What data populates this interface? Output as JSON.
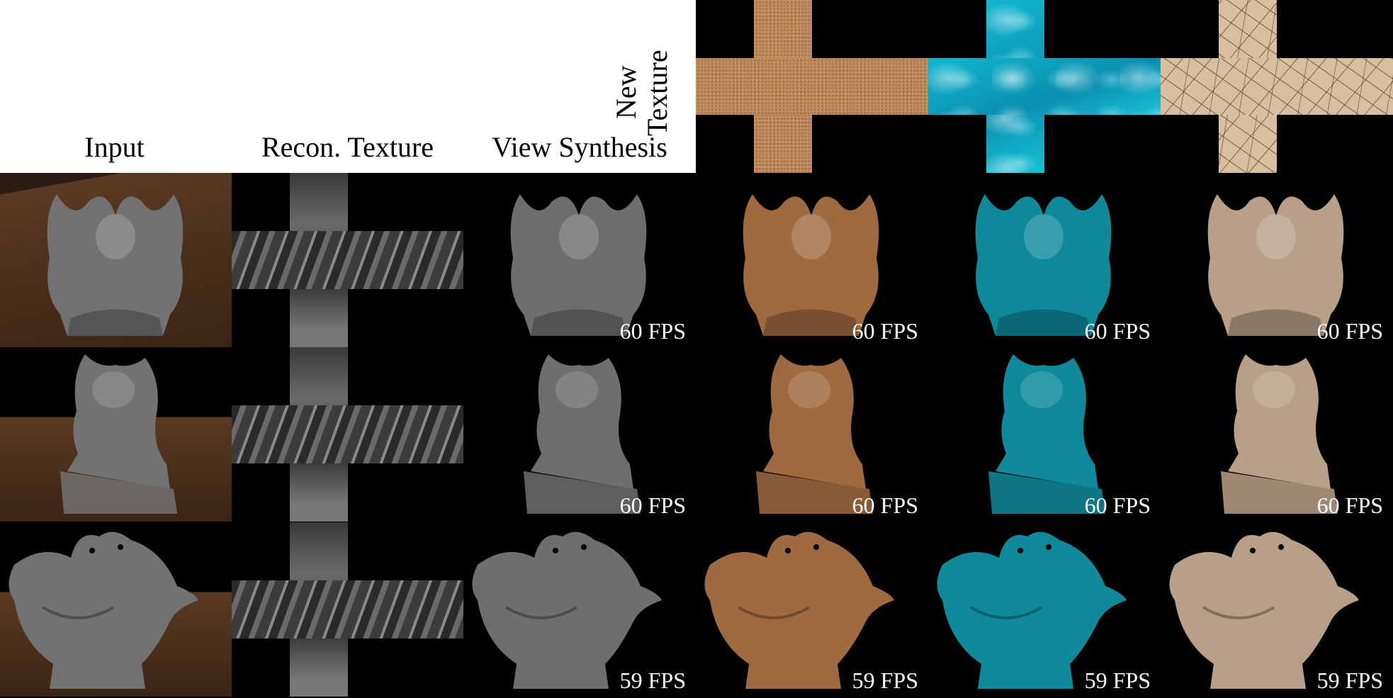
{
  "headers": {
    "input": "Input",
    "recon": "Recon. Texture",
    "view": "View Synthesis",
    "new_texture_line1": "New",
    "new_texture_line2": "Texture"
  },
  "textures": [
    {
      "name": "sand",
      "color": "#c08a5a"
    },
    {
      "name": "water",
      "color": "#10b6d0"
    },
    {
      "name": "cracked-clay",
      "color": "#d8bfa0"
    }
  ],
  "rows": [
    {
      "subject": "angel-in-hands",
      "fps": [
        "60 FPS",
        "60 FPS",
        "60 FPS",
        "60 FPS"
      ]
    },
    {
      "subject": "owl-on-book",
      "fps": [
        "60 FPS",
        "60 FPS",
        "60 FPS",
        "60 FPS"
      ]
    },
    {
      "subject": "two-birds",
      "fps": [
        "59 FPS",
        "59 FPS",
        "59 FPS",
        "59 FPS"
      ]
    }
  ],
  "colors": {
    "input_floor": "#5a3a22",
    "stone_gray": "#6e6e6e",
    "sand_tint": "#a06a40",
    "water_tint": "#0f8a9a",
    "clay_tint": "#b8a088"
  }
}
